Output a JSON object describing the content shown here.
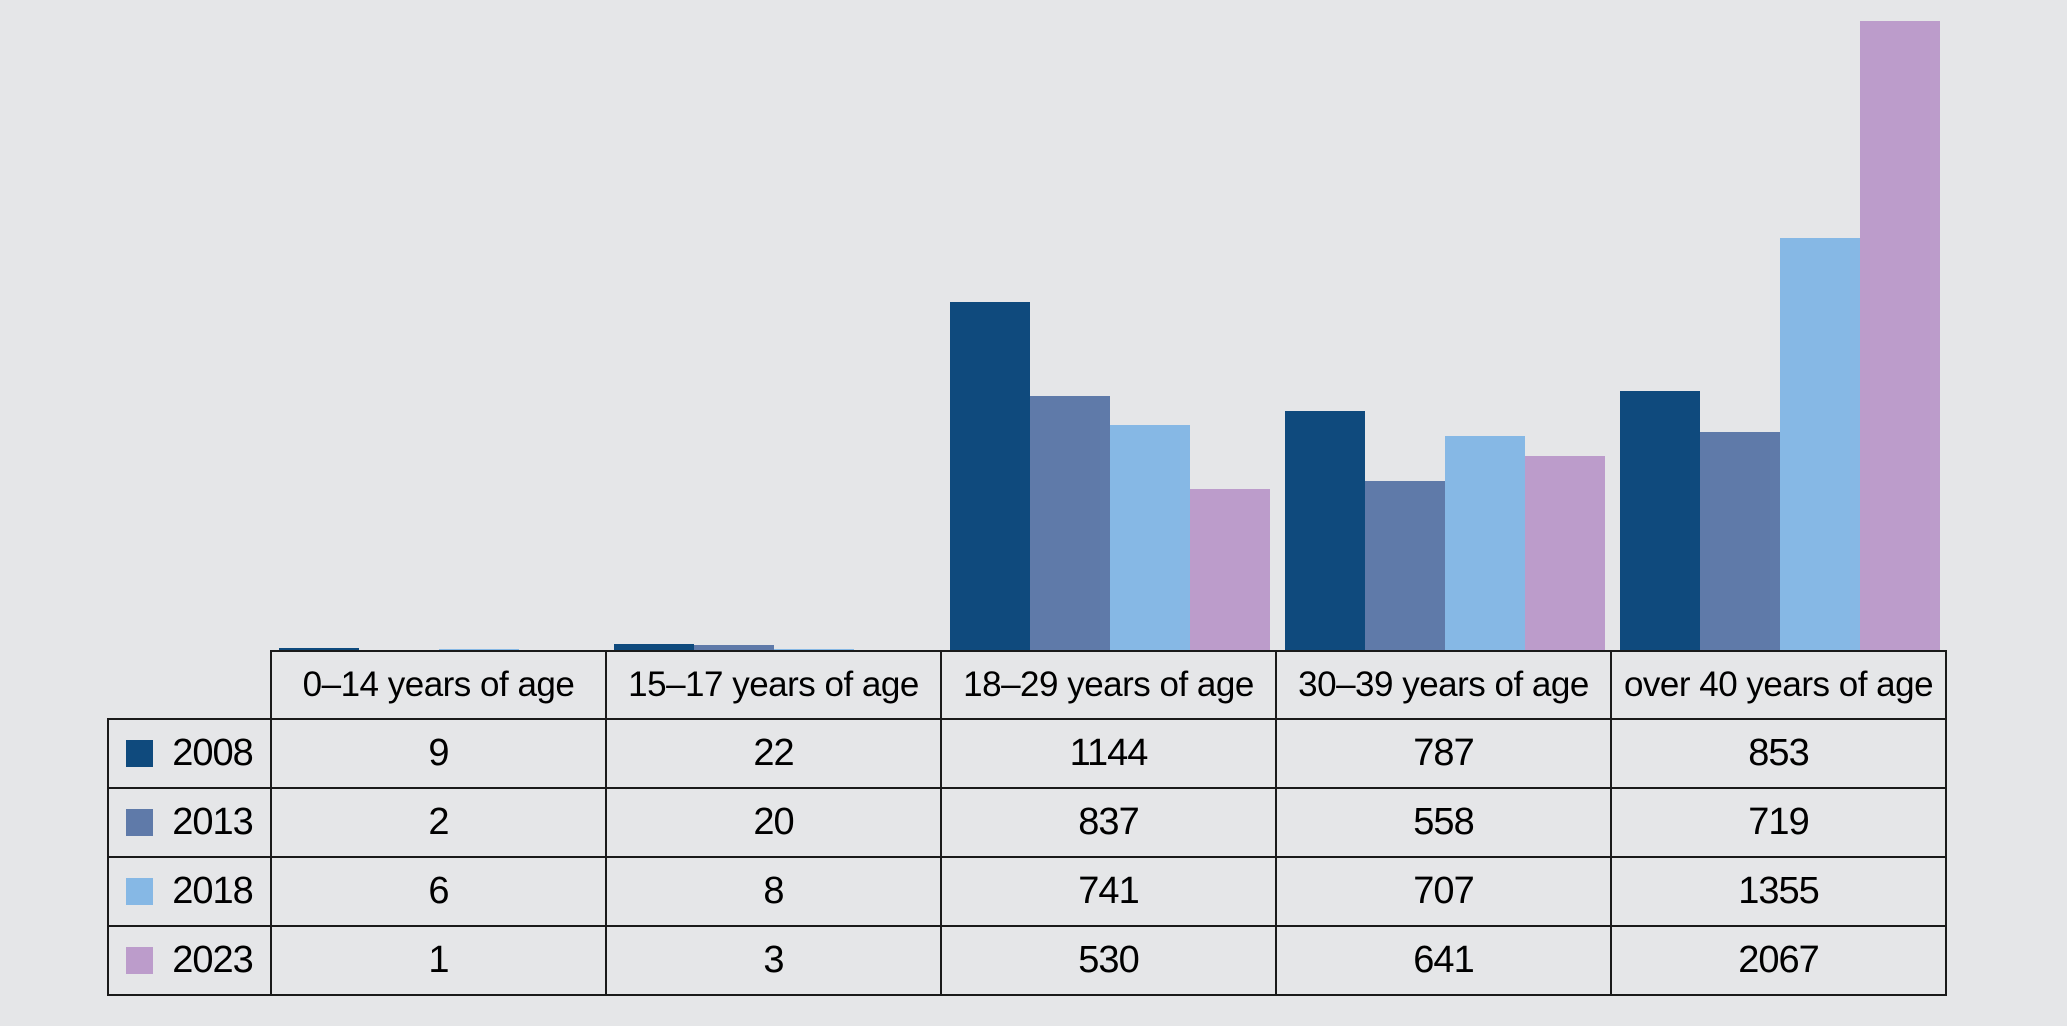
{
  "background_color": "#E5E6E8",
  "border_color": "#1A1A1A",
  "chart_data": {
    "type": "bar",
    "title": "",
    "xlabel": "",
    "ylabel": "",
    "ylim": [
      0,
      2067
    ],
    "grid": false,
    "axes_visible": false,
    "legend_position": "table-left-column",
    "categories": [
      "0–14 years of age",
      "15–17 years of age",
      "18–29 years of age",
      "30–39 years of age",
      "over 40 years of age"
    ],
    "series": [
      {
        "name": "2008",
        "color": "#0F4A7D",
        "values": [
          9,
          22,
          1144,
          787,
          853
        ]
      },
      {
        "name": "2013",
        "color": "#5F7AA9",
        "values": [
          2,
          20,
          837,
          558,
          719
        ]
      },
      {
        "name": "2018",
        "color": "#86B8E5",
        "values": [
          6,
          8,
          741,
          707,
          1355
        ]
      },
      {
        "name": "2023",
        "color": "#BC9CCB",
        "values": [
          1,
          3,
          530,
          641,
          2067
        ]
      }
    ]
  }
}
